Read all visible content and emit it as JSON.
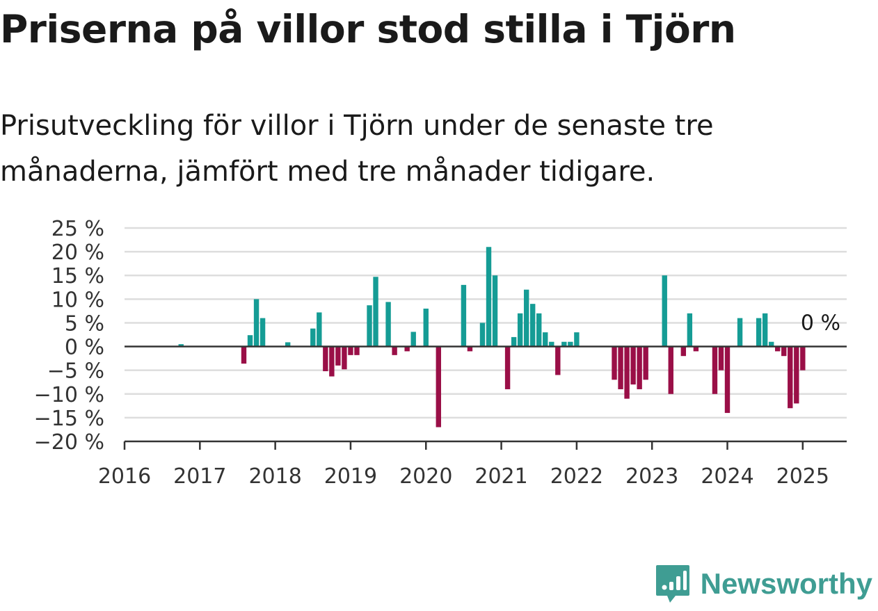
{
  "title": "Priserna på villor stod stilla i Tjörn",
  "subtitle": "Prisutveckling för villor i Tjörn under de senaste tre månaderna, jämfört med tre månader tidigare.",
  "brand": {
    "name": "Newsworthy",
    "icon": "newsworthy-logo-icon"
  },
  "colors": {
    "positive": "#159c95",
    "negative": "#9a0f47",
    "grid": "#dddddd",
    "axis": "#333333"
  },
  "chart_data": {
    "type": "bar",
    "x_start": "2016-01",
    "x_end": "2025-08",
    "xticks": [
      "2016",
      "2017",
      "2018",
      "2019",
      "2020",
      "2021",
      "2022",
      "2023",
      "2024",
      "2025"
    ],
    "yticks": [
      25,
      20,
      15,
      10,
      5,
      0,
      -5,
      -10,
      -15,
      -20
    ],
    "ytick_labels": [
      "25 %",
      "20 %",
      "15 %",
      "10 %",
      "5 %",
      "0 %",
      "−5 %",
      "−10 %",
      "−15 %",
      "−20 %"
    ],
    "ylim": [
      -20,
      25
    ],
    "grid": true,
    "end_label": "0 %",
    "series": [
      {
        "points": [
          [
            "2016-10",
            0.5
          ],
          [
            "2017-08",
            -3.6
          ],
          [
            "2017-09",
            2.4
          ],
          [
            "2017-10",
            10
          ],
          [
            "2017-11",
            6
          ],
          [
            "2018-03",
            0.9
          ],
          [
            "2018-07",
            3.8
          ],
          [
            "2018-08",
            7.2
          ],
          [
            "2018-09",
            -5.2
          ],
          [
            "2018-10",
            -6.3
          ],
          [
            "2018-11",
            -4
          ],
          [
            "2018-12",
            -4.8
          ],
          [
            "2019-01",
            -1.8
          ],
          [
            "2019-02",
            -1.8
          ],
          [
            "2019-04",
            8.7
          ],
          [
            "2019-05",
            14.7
          ],
          [
            "2019-07",
            9.4
          ],
          [
            "2019-08",
            -1.8
          ],
          [
            "2019-10",
            -1
          ],
          [
            "2019-11",
            3.1
          ],
          [
            "2020-01",
            8
          ],
          [
            "2020-03",
            -17
          ],
          [
            "2020-07",
            13
          ],
          [
            "2020-08",
            -1
          ],
          [
            "2020-10",
            5
          ],
          [
            "2020-11",
            21
          ],
          [
            "2020-12",
            15
          ],
          [
            "2021-02",
            -9
          ],
          [
            "2021-03",
            2
          ],
          [
            "2021-04",
            7
          ],
          [
            "2021-05",
            12
          ],
          [
            "2021-06",
            9
          ],
          [
            "2021-07",
            7
          ],
          [
            "2021-08",
            3
          ],
          [
            "2021-09",
            1
          ],
          [
            "2021-10",
            -6
          ],
          [
            "2021-11",
            1
          ],
          [
            "2021-12",
            1
          ],
          [
            "2022-01",
            3
          ],
          [
            "2022-07",
            -7
          ],
          [
            "2022-08",
            -9
          ],
          [
            "2022-09",
            -11
          ],
          [
            "2022-10",
            -8
          ],
          [
            "2022-11",
            -9
          ],
          [
            "2022-12",
            -7
          ],
          [
            "2023-03",
            15
          ],
          [
            "2023-04",
            -10
          ],
          [
            "2023-06",
            -2
          ],
          [
            "2023-07",
            7
          ],
          [
            "2023-08",
            -1
          ],
          [
            "2023-11",
            -10
          ],
          [
            "2023-12",
            -5
          ],
          [
            "2024-01",
            -14
          ],
          [
            "2024-03",
            6
          ],
          [
            "2024-06",
            6
          ],
          [
            "2024-07",
            7
          ],
          [
            "2024-08",
            1
          ],
          [
            "2024-09",
            -1
          ],
          [
            "2024-10",
            -2
          ],
          [
            "2024-11",
            -13
          ],
          [
            "2024-12",
            -12
          ],
          [
            "2025-01",
            -5
          ],
          [
            "2025-02",
            0
          ]
        ]
      }
    ]
  }
}
